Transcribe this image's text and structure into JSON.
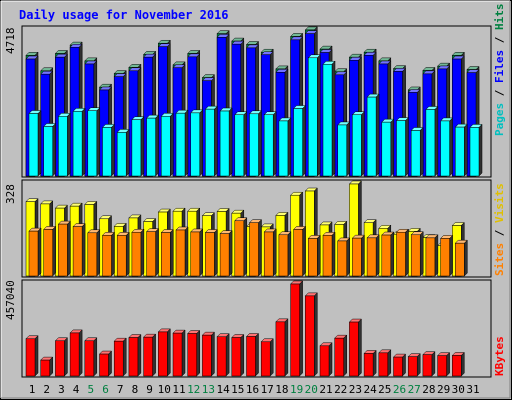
{
  "chart_data": [
    {
      "type": "bar",
      "title": "Daily usage for November 2016",
      "categories": [
        "1",
        "2",
        "3",
        "4",
        "5",
        "6",
        "7",
        "8",
        "9",
        "10",
        "11",
        "12",
        "13",
        "14",
        "15",
        "16",
        "17",
        "18",
        "19",
        "20",
        "21",
        "22",
        "23",
        "24",
        "25",
        "26",
        "27",
        "28",
        "29",
        "30",
        "31"
      ],
      "weekend_days": [
        "5",
        "6",
        "12",
        "13",
        "19",
        "20",
        "26",
        "27"
      ],
      "ymax_label": "4718",
      "ylim": [
        0,
        4718
      ],
      "side_labels": {
        "hits": "Hits",
        "files": "Files",
        "pages": "Pages",
        "sep": " / "
      },
      "series": [
        {
          "name": "Hits",
          "color": "#008040",
          "values": [
            3900,
            3400,
            3960,
            4230,
            3720,
            2870,
            3310,
            3510,
            3930,
            4290,
            3590,
            3960,
            3180,
            4600,
            4360,
            4250,
            4000,
            3460,
            4510,
            4720,
            4100,
            3370,
            3840,
            4000,
            3720,
            3470,
            2780,
            3410,
            3550,
            3900,
            3440
          ]
        },
        {
          "name": "Files",
          "color": "#0000ff",
          "values": [
            3780,
            3290,
            3840,
            4160,
            3620,
            2780,
            3210,
            3400,
            3840,
            4180,
            3500,
            3850,
            3080,
            4480,
            4260,
            4140,
            3920,
            3350,
            4400,
            4600,
            3990,
            3270,
            3740,
            3900,
            3620,
            3380,
            2700,
            3300,
            3460,
            3780,
            3340
          ]
        },
        {
          "name": "Pages",
          "color": "#00ffff",
          "values": [
            2020,
            1600,
            1930,
            2090,
            2110,
            1570,
            1410,
            1820,
            1870,
            1930,
            2030,
            2040,
            2160,
            2100,
            1980,
            2010,
            1980,
            1780,
            2180,
            3820,
            3610,
            1650,
            1980,
            2550,
            1740,
            1790,
            1470,
            2150,
            1780,
            1580,
            1570
          ]
        }
      ]
    },
    {
      "type": "bar",
      "ymax_label": "328",
      "ylim": [
        0,
        328
      ],
      "side_labels": {
        "visits": "Visits",
        "sites": "Sites",
        "sep": " / "
      },
      "series": [
        {
          "name": "Visits",
          "color": "#ffff00",
          "values": [
            265,
            257,
            242,
            249,
            255,
            204,
            177,
            207,
            194,
            228,
            231,
            231,
            215,
            230,
            224,
            176,
            175,
            216,
            288,
            303,
            182,
            184,
            328,
            190,
            170,
            149,
            159,
            137,
            108,
            180,
            0
          ]
        },
        {
          "name": "Sites",
          "color": "#ff8000",
          "values": [
            160,
            166,
            185,
            176,
            154,
            145,
            145,
            156,
            158,
            155,
            164,
            157,
            155,
            151,
            197,
            190,
            157,
            147,
            166,
            134,
            145,
            125,
            135,
            136,
            146,
            156,
            147,
            136,
            134,
            117,
            0
          ]
        }
      ]
    },
    {
      "type": "bar",
      "ymax_label": "457040",
      "ylim": [
        0,
        457040
      ],
      "side_labels": {
        "kbytes": "KBytes"
      },
      "series": [
        {
          "name": "KBytes",
          "color": "#ff0000",
          "values": [
            185000,
            79000,
            175000,
            214000,
            175000,
            109000,
            173000,
            191000,
            193000,
            219000,
            213000,
            211000,
            203000,
            195000,
            191000,
            196000,
            170000,
            269000,
            457040,
            398000,
            150000,
            188000,
            268000,
            112000,
            115000,
            94000,
            96000,
            106000,
            101000,
            102000,
            0
          ]
        }
      ]
    }
  ]
}
